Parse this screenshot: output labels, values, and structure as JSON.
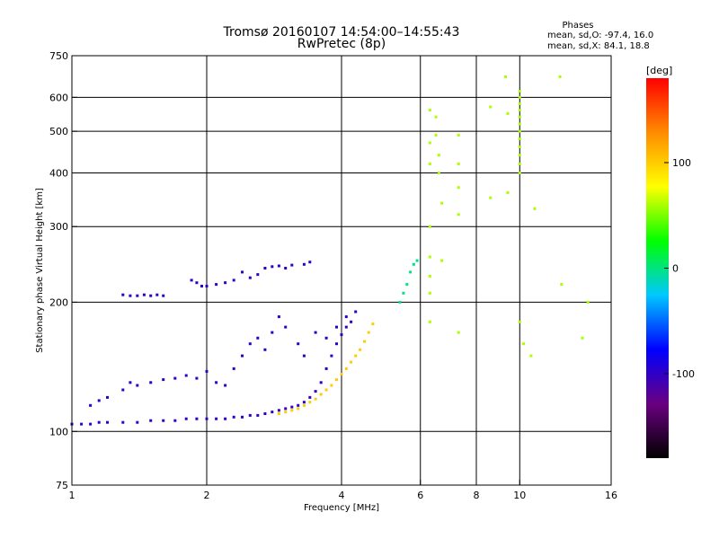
{
  "chart_data": {
    "type": "scatter",
    "title": "Tromsø 20160107 14:54:00–14:55:43",
    "subtitle": "RwPretec (8p)",
    "phase_box": {
      "heading": "Phases",
      "line_o": "mean, sd,O: -97.4, 16.0",
      "line_x": "mean, sd,X:  84.1, 18.8"
    },
    "xlabel": "Frequency [MHz]",
    "ylabel": "Stationary phase Virtual Height [km]",
    "x_scale": "log",
    "y_scale": "log",
    "xlim": [
      1,
      16
    ],
    "ylim": [
      75,
      750
    ],
    "x_ticks": [
      {
        "value": 1,
        "label": "1"
      },
      {
        "value": 2,
        "label": "2"
      },
      {
        "value": 4,
        "label": "4"
      },
      {
        "value": 6,
        "label": "6"
      },
      {
        "value": 8,
        "label": "8"
      },
      {
        "value": 10,
        "label": "10"
      },
      {
        "value": 16,
        "label": "16"
      }
    ],
    "y_ticks": [
      {
        "value": 75,
        "label": "75"
      },
      {
        "value": 100,
        "label": "100"
      },
      {
        "value": 200,
        "label": "200"
      },
      {
        "value": 300,
        "label": "300"
      },
      {
        "value": 400,
        "label": "400"
      },
      {
        "value": 500,
        "label": "500"
      },
      {
        "value": 600,
        "label": "600"
      },
      {
        "value": 750,
        "label": "750"
      }
    ],
    "grid": true,
    "colorbar": {
      "label": "[deg]",
      "range": [
        -180,
        180
      ],
      "ticks": [
        {
          "value": 100,
          "label": "100"
        },
        {
          "value": 0,
          "label": "0"
        },
        {
          "value": -100,
          "label": "-100"
        }
      ],
      "colors": [
        "#000000",
        "#6a0080",
        "#0000ff",
        "#00c8ff",
        "#00ff00",
        "#ffff00",
        "#ff8c00",
        "#ff0000"
      ]
    },
    "series": [
      {
        "trace": "E-layer O-mode (bottom trace)",
        "phase": -100,
        "points": [
          [
            1.0,
            104
          ],
          [
            1.05,
            104
          ],
          [
            1.1,
            104
          ],
          [
            1.15,
            105
          ],
          [
            1.2,
            105
          ],
          [
            1.3,
            105
          ],
          [
            1.4,
            105
          ],
          [
            1.5,
            106
          ],
          [
            1.6,
            106
          ],
          [
            1.7,
            106
          ],
          [
            1.8,
            107
          ],
          [
            1.9,
            107
          ],
          [
            2.0,
            107
          ],
          [
            2.1,
            107
          ],
          [
            2.2,
            107
          ],
          [
            2.3,
            108
          ],
          [
            2.4,
            108
          ],
          [
            2.5,
            109
          ],
          [
            2.6,
            109
          ],
          [
            2.7,
            110
          ],
          [
            2.8,
            111
          ],
          [
            2.9,
            112
          ],
          [
            3.0,
            113
          ],
          [
            3.1,
            114
          ],
          [
            3.2,
            115
          ],
          [
            3.3,
            117
          ],
          [
            3.4,
            120
          ],
          [
            3.5,
            124
          ],
          [
            3.6,
            130
          ],
          [
            3.7,
            140
          ],
          [
            3.8,
            150
          ],
          [
            3.9,
            160
          ],
          [
            4.0,
            168
          ],
          [
            4.1,
            175
          ],
          [
            4.2,
            180
          ]
        ]
      },
      {
        "trace": "E-layer O-mode, upper scatter branch",
        "phase": -100,
        "points": [
          [
            1.1,
            115
          ],
          [
            1.15,
            118
          ],
          [
            1.2,
            120
          ],
          [
            1.3,
            125
          ],
          [
            1.35,
            130
          ],
          [
            1.4,
            128
          ],
          [
            1.5,
            130
          ],
          [
            1.6,
            132
          ],
          [
            1.7,
            133
          ],
          [
            1.8,
            135
          ],
          [
            1.9,
            133
          ],
          [
            2.0,
            138
          ],
          [
            2.1,
            130
          ],
          [
            2.2,
            128
          ],
          [
            2.3,
            140
          ],
          [
            2.4,
            150
          ],
          [
            2.5,
            160
          ],
          [
            2.6,
            165
          ],
          [
            2.7,
            155
          ],
          [
            2.8,
            170
          ],
          [
            2.9,
            185
          ],
          [
            3.0,
            175
          ],
          [
            3.2,
            160
          ],
          [
            3.3,
            150
          ],
          [
            3.5,
            170
          ],
          [
            3.7,
            165
          ],
          [
            3.9,
            175
          ],
          [
            4.1,
            185
          ],
          [
            4.3,
            190
          ]
        ]
      },
      {
        "trace": "Sporadic layer near 207 km",
        "phase": -100,
        "points": [
          [
            1.3,
            208
          ],
          [
            1.35,
            207
          ],
          [
            1.4,
            207
          ],
          [
            1.45,
            208
          ],
          [
            1.5,
            207
          ],
          [
            1.55,
            208
          ],
          [
            1.6,
            207
          ]
        ]
      },
      {
        "trace": "Sporadic layer near 225 km",
        "phase": -100,
        "points": [
          [
            1.85,
            225
          ],
          [
            1.9,
            222
          ],
          [
            1.95,
            218
          ],
          [
            2.0,
            218
          ],
          [
            2.1,
            220
          ],
          [
            2.2,
            222
          ],
          [
            2.3,
            225
          ],
          [
            2.4,
            235
          ],
          [
            2.5,
            228
          ],
          [
            2.6,
            232
          ],
          [
            2.7,
            240
          ],
          [
            2.8,
            242
          ],
          [
            2.9,
            243
          ],
          [
            3.0,
            240
          ],
          [
            3.1,
            244
          ],
          [
            3.3,
            245
          ],
          [
            3.4,
            248
          ]
        ]
      },
      {
        "trace": "F-layer X-mode (yellow trace)",
        "phase": 100,
        "points": [
          [
            2.9,
            110
          ],
          [
            3.0,
            111
          ],
          [
            3.1,
            112
          ],
          [
            3.2,
            113
          ],
          [
            3.3,
            115
          ],
          [
            3.4,
            117
          ],
          [
            3.5,
            119
          ],
          [
            3.6,
            122
          ],
          [
            3.7,
            125
          ],
          [
            3.8,
            128
          ],
          [
            3.9,
            132
          ],
          [
            4.0,
            136
          ],
          [
            4.1,
            140
          ],
          [
            4.2,
            145
          ],
          [
            4.3,
            150
          ],
          [
            4.4,
            155
          ],
          [
            4.5,
            162
          ],
          [
            4.6,
            170
          ],
          [
            4.7,
            178
          ]
        ]
      },
      {
        "trace": "Trace near 6 MHz",
        "phase": 0,
        "points": [
          [
            5.4,
            200
          ],
          [
            5.5,
            210
          ],
          [
            5.6,
            220
          ],
          [
            5.7,
            235
          ],
          [
            5.8,
            245
          ],
          [
            5.9,
            250
          ]
        ]
      },
      {
        "trace": "Scattered points above 6 MHz",
        "phase": 60,
        "points": [
          [
            6.3,
            560
          ],
          [
            6.3,
            470
          ],
          [
            6.3,
            420
          ],
          [
            6.3,
            300
          ],
          [
            6.3,
            255
          ],
          [
            6.3,
            230
          ],
          [
            6.3,
            210
          ],
          [
            6.3,
            180
          ],
          [
            6.5,
            540
          ],
          [
            6.5,
            490
          ],
          [
            6.6,
            440
          ],
          [
            6.6,
            400
          ],
          [
            6.7,
            340
          ],
          [
            6.7,
            250
          ],
          [
            7.3,
            490
          ],
          [
            7.3,
            420
          ],
          [
            7.3,
            370
          ],
          [
            7.3,
            320
          ],
          [
            7.3,
            170
          ],
          [
            8.6,
            350
          ],
          [
            8.6,
            570
          ],
          [
            9.4,
            360
          ],
          [
            9.4,
            550
          ],
          [
            9.3,
            670
          ],
          [
            10.0,
            620
          ],
          [
            10.0,
            600
          ],
          [
            10.0,
            580
          ],
          [
            10.0,
            560
          ],
          [
            10.0,
            540
          ],
          [
            10.0,
            520
          ],
          [
            10.0,
            500
          ],
          [
            10.0,
            480
          ],
          [
            10.0,
            460
          ],
          [
            10.0,
            440
          ],
          [
            10.0,
            420
          ],
          [
            10.0,
            400
          ],
          [
            10.0,
            180
          ],
          [
            10.2,
            160
          ],
          [
            10.8,
            330
          ],
          [
            10.6,
            150
          ],
          [
            12.3,
            670
          ],
          [
            12.4,
            220
          ],
          [
            13.8,
            165
          ],
          [
            14.2,
            200
          ]
        ]
      }
    ]
  }
}
